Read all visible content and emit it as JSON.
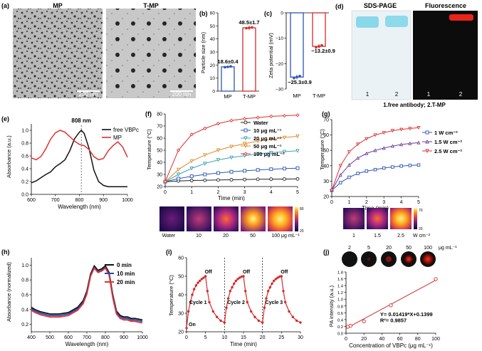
{
  "panels": {
    "a": {
      "letter": "(a)",
      "mp_title": "MP",
      "tmp_title": "T-MP",
      "scale_left": "200 nm",
      "scale_right": "200 nm"
    },
    "b": {
      "letter": "(b)",
      "ylabel": "Particle size (nm)",
      "categories": [
        "MP",
        "T-MP"
      ],
      "values": [
        18.6,
        48.5
      ],
      "labels": [
        "18.6±0.4",
        "48.5±1.7"
      ],
      "yticks": [
        "0",
        "10",
        "20",
        "30",
        "40",
        "50",
        "60"
      ],
      "ylim": [
        0,
        60
      ],
      "colors": [
        "#2b55b5",
        "#d42a2a"
      ]
    },
    "c": {
      "letter": "(c)",
      "ylabel": "Zeta potential (mV)",
      "categories": [
        "MP",
        "T-MP"
      ],
      "values": [
        -25.3,
        -13.2
      ],
      "labels": [
        "−25.3±0.9",
        "−13.2±0.9"
      ],
      "yticks": [
        "0",
        "−10",
        "−20",
        "−30"
      ],
      "ylim": [
        -30,
        0
      ],
      "colors": [
        "#2b55b5",
        "#d42a2a"
      ]
    },
    "d": {
      "letter": "(d)",
      "title_left": "SDS-PAGE",
      "title_right": "Fluorescence",
      "lane_left": [
        "1",
        "2"
      ],
      "lane_right": [
        "1",
        "2"
      ],
      "caption": "1.free antibody; 2.T-MP"
    },
    "e": {
      "letter": "(e)",
      "xlabel": "Wavelength (nm)",
      "ylabel": "Absorbance (a.u.)",
      "peak_label": "808 nm",
      "xticks": [
        "600",
        "700",
        "800",
        "900",
        "1000"
      ],
      "yticks": [
        "0.0",
        "0.2",
        "0.4",
        "0.6",
        "0.8",
        "1.0"
      ],
      "legend": [
        "free VBPc",
        "MP"
      ]
    },
    "f": {
      "letter": "(f)",
      "xlabel": "Time (min)",
      "ylabel": "Temperature (°C)",
      "xticks": [
        "0",
        "1",
        "2",
        "3",
        "4",
        "5"
      ],
      "yticks": [
        "20",
        "30",
        "40",
        "50",
        "60",
        "70",
        "80"
      ],
      "legend": [
        "Water",
        "10 μg mL⁻¹",
        "20 μg mL⁻¹",
        "50 μg mL⁻¹",
        "100 μg mL⁻¹"
      ],
      "thermal_labels": [
        "Water",
        "10",
        "20",
        "50",
        "100 μg mL⁻¹"
      ],
      "cbar_max": "80",
      "cbar_min": "20"
    },
    "g": {
      "letter": "(g)",
      "xlabel": "Time (min)",
      "ylabel": "Temperature (°C)",
      "xticks": [
        "0",
        "1",
        "2",
        "3",
        "4",
        "5"
      ],
      "yticks": [
        "20",
        "30",
        "40",
        "50",
        "60",
        "70"
      ],
      "legend": [
        "1 W cm⁻²",
        "1.5 W cm⁻²",
        "2.5 W cm⁻²"
      ],
      "thermal_labels": [
        "1",
        "1.5",
        "2.5",
        "W cm⁻²"
      ],
      "cbar_max": "70",
      "cbar_min": "20"
    },
    "h": {
      "letter": "(h)",
      "xlabel": "Wavelength (nm)",
      "ylabel": "Absorbance (normalized)",
      "xticks": [
        "400",
        "500",
        "600",
        "700",
        "800",
        "900",
        "1000"
      ],
      "yticks": [
        "0.2",
        "0.4",
        "0.6",
        "0.8",
        "1.0"
      ],
      "legend": [
        "0 min",
        "10 min",
        "20 min"
      ]
    },
    "i": {
      "letter": "(i)",
      "xlabel": "Time (min)",
      "ylabel": "Temperature (°C)",
      "xticks": [
        "0",
        "5",
        "10",
        "15",
        "20",
        "25",
        "30"
      ],
      "yticks": [
        "20",
        "30",
        "40",
        "50",
        "60"
      ],
      "cycles": [
        "Cycle 1",
        "Cycle 2",
        "Cycle 3"
      ],
      "on_label": "On",
      "off_label": "Off"
    },
    "j": {
      "letter": "(j)",
      "xlabel": "Concentration of VBPc (μg mL⁻¹)",
      "ylabel": "PA intensity (a.u.)",
      "xticks": [
        "0",
        "20",
        "40",
        "60",
        "80",
        "100"
      ],
      "yticks": [
        "0.0",
        "0.2",
        "0.4",
        "0.6",
        "0.8",
        "1.0",
        "1.2",
        "1.4",
        "1.6",
        "1.8"
      ],
      "equation": "Y= 0.01419*X+0.1399",
      "r2": "R²= 0.9857",
      "conc_labels": [
        "2",
        "5",
        "20",
        "50",
        "100",
        "μg mL⁻¹"
      ]
    }
  },
  "chart_data": [
    {
      "panel": "b",
      "type": "bar",
      "categories": [
        "MP",
        "T-MP"
      ],
      "values": [
        18.6,
        48.5
      ],
      "errors": [
        0.4,
        1.7
      ],
      "ylabel": "Particle size (nm)",
      "ylim": [
        0,
        60
      ]
    },
    {
      "panel": "c",
      "type": "bar",
      "categories": [
        "MP",
        "T-MP"
      ],
      "values": [
        -25.3,
        -13.2
      ],
      "errors": [
        0.9,
        0.9
      ],
      "ylabel": "Zeta potential (mV)",
      "ylim": [
        -30,
        0
      ]
    },
    {
      "panel": "e",
      "type": "line",
      "xlabel": "Wavelength (nm)",
      "ylabel": "Absorbance (a.u.)",
      "xlim": [
        600,
        1000
      ],
      "ylim": [
        0,
        1.1
      ],
      "series": [
        {
          "name": "free VBPc",
          "color": "#111111",
          "x": [
            600,
            620,
            640,
            660,
            680,
            700,
            720,
            740,
            760,
            780,
            800,
            808,
            820,
            840,
            860,
            880,
            900,
            920,
            940,
            960,
            980,
            1000
          ],
          "y": [
            0.18,
            0.21,
            0.26,
            0.31,
            0.35,
            0.43,
            0.48,
            0.54,
            0.68,
            0.87,
            0.97,
            1.0,
            0.95,
            0.72,
            0.38,
            0.2,
            0.14,
            0.12,
            0.12,
            0.12,
            0.12,
            0.12
          ]
        },
        {
          "name": "MP",
          "color": "#e03030",
          "x": [
            600,
            620,
            640,
            660,
            680,
            700,
            720,
            740,
            760,
            780,
            800,
            820,
            840,
            860,
            880,
            900,
            920,
            940,
            960,
            980,
            1000
          ],
          "y": [
            0.57,
            0.54,
            0.59,
            0.71,
            0.86,
            0.96,
            1.0,
            0.97,
            0.9,
            0.83,
            0.78,
            0.76,
            0.7,
            0.59,
            0.54,
            0.56,
            0.68,
            0.76,
            0.82,
            0.74,
            0.58
          ]
        }
      ]
    },
    {
      "panel": "f",
      "type": "line",
      "xlabel": "Time (min)",
      "ylabel": "Temperature (°C)",
      "xlim": [
        0,
        5
      ],
      "ylim": [
        20,
        80
      ],
      "x": [
        0,
        0.5,
        1,
        1.5,
        2,
        2.5,
        3,
        3.5,
        4,
        4.5,
        5
      ],
      "series": [
        {
          "name": "Water",
          "color": "#222222",
          "marker": "circle",
          "y": [
            24,
            24.6,
            25,
            25.2,
            25.4,
            25.6,
            25.8,
            26,
            26.1,
            26.2,
            26.3
          ]
        },
        {
          "name": "10 μg mL⁻¹",
          "color": "#2b55b5",
          "marker": "square",
          "y": [
            24,
            26.5,
            28.5,
            30,
            31.2,
            32.2,
            33,
            33.7,
            34.3,
            34.8,
            35.2
          ]
        },
        {
          "name": "20 μg mL⁻¹",
          "color": "#3ba3b8",
          "marker": "triangle-down",
          "y": [
            24,
            30,
            35,
            39,
            42,
            44,
            45.5,
            47,
            48,
            48.8,
            49.5
          ]
        },
        {
          "name": "50 μg mL⁻¹",
          "color": "#e08a2a",
          "marker": "triangle-down",
          "y": [
            24,
            34,
            41,
            46,
            50,
            53,
            55.5,
            57.5,
            59,
            60.5,
            61.5
          ]
        },
        {
          "name": "100 μg mL⁻¹",
          "color": "#e03030",
          "marker": "diamond",
          "y": [
            24,
            50,
            63,
            68,
            72,
            74.5,
            76,
            77,
            78,
            78.5,
            79
          ]
        }
      ]
    },
    {
      "panel": "g",
      "type": "line",
      "xlabel": "Time (min)",
      "ylabel": "Temperature (°C)",
      "xlim": [
        0,
        5
      ],
      "ylim": [
        20,
        70
      ],
      "x": [
        0,
        0.5,
        1,
        1.5,
        2,
        2.5,
        3,
        3.5,
        4,
        4.5,
        5
      ],
      "series": [
        {
          "name": "1 W cm⁻²",
          "color": "#2b55b5",
          "marker": "square",
          "y": [
            24,
            29,
            32.5,
            35,
            36.5,
            37.5,
            38.5,
            39.2,
            39.8,
            40.2,
            40.5
          ]
        },
        {
          "name": "1.5 W cm⁻²",
          "color": "#6a3b9a",
          "marker": "triangle",
          "y": [
            24,
            34,
            40.5,
            45,
            48,
            50,
            51.5,
            52.8,
            53.8,
            54.5,
            55
          ]
        },
        {
          "name": "2.5 W cm⁻²",
          "color": "#e03030",
          "marker": "triangle-down",
          "y": [
            24,
            40,
            49,
            54,
            57.5,
            60,
            61.5,
            62.8,
            63.6,
            64.2,
            64.8
          ]
        }
      ]
    },
    {
      "panel": "h",
      "type": "line",
      "xlabel": "Wavelength (nm)",
      "ylabel": "Absorbance (normalized)",
      "xlim": [
        400,
        1000
      ],
      "ylim": [
        0.1,
        1.1
      ],
      "series": [
        {
          "name": "0 min",
          "color": "#111111",
          "x": [
            400,
            420,
            450,
            500,
            550,
            600,
            650,
            680,
            700,
            720,
            740,
            760,
            780,
            800,
            820,
            840,
            860,
            880,
            900,
            920,
            940,
            960,
            980,
            1000
          ],
          "y": [
            0.43,
            0.4,
            0.37,
            0.34,
            0.34,
            0.36,
            0.43,
            0.52,
            0.65,
            0.88,
            0.99,
            0.93,
            0.95,
            0.99,
            0.9,
            0.6,
            0.38,
            0.32,
            0.3,
            0.3,
            0.28,
            0.28,
            0.27,
            0.26
          ]
        },
        {
          "name": "10 min",
          "color": "#1e4db0",
          "x": [
            400,
            420,
            450,
            500,
            550,
            600,
            650,
            680,
            700,
            720,
            740,
            760,
            780,
            800,
            820,
            840,
            860,
            880,
            900,
            920,
            940,
            960,
            980,
            1000
          ],
          "y": [
            0.41,
            0.38,
            0.35,
            0.32,
            0.32,
            0.34,
            0.41,
            0.5,
            0.63,
            0.86,
            0.97,
            0.91,
            0.93,
            0.97,
            0.88,
            0.58,
            0.36,
            0.3,
            0.28,
            0.28,
            0.26,
            0.26,
            0.25,
            0.24
          ]
        },
        {
          "name": "20 min",
          "color": "#e03030",
          "x": [
            400,
            420,
            450,
            500,
            550,
            600,
            650,
            680,
            700,
            720,
            740,
            760,
            780,
            800,
            820,
            840,
            860,
            880,
            900,
            920,
            940,
            960,
            980,
            1000
          ],
          "y": [
            0.39,
            0.36,
            0.33,
            0.3,
            0.3,
            0.32,
            0.39,
            0.48,
            0.61,
            0.85,
            0.96,
            0.9,
            0.92,
            0.96,
            0.87,
            0.56,
            0.34,
            0.28,
            0.26,
            0.26,
            0.24,
            0.24,
            0.23,
            0.22
          ]
        }
      ]
    },
    {
      "panel": "i",
      "type": "line",
      "xlabel": "Time (min)",
      "ylabel": "Temperature (°C)",
      "xlim": [
        0,
        30
      ],
      "ylim": [
        20,
        60
      ],
      "series": [
        {
          "name": "Photothermal cycles",
          "color": "#d42a2a",
          "x": [
            0,
            0.5,
            1,
            1.5,
            2,
            2.5,
            3,
            3.5,
            4,
            4.5,
            5,
            5.5,
            6,
            7,
            8,
            9,
            10,
            10.5,
            11,
            11.5,
            12,
            12.5,
            13,
            13.5,
            14,
            14.5,
            15,
            15.5,
            16,
            17,
            18,
            19,
            20,
            20.5,
            21,
            21.5,
            22,
            22.5,
            23,
            23.5,
            24,
            24.5,
            25,
            25.5,
            26,
            27,
            28,
            29,
            30
          ],
          "y": [
            22,
            31,
            36,
            40,
            43,
            45,
            46.5,
            47.5,
            48.5,
            49.2,
            50,
            42,
            36,
            31,
            28,
            26,
            25,
            33,
            38,
            42,
            44,
            46,
            47.5,
            48.5,
            49.2,
            49.8,
            50,
            42,
            36,
            31,
            28,
            26,
            25,
            33,
            38,
            42,
            44,
            46,
            47.5,
            48.5,
            49.2,
            49.8,
            50,
            42,
            36,
            31,
            28,
            26,
            25
          ]
        }
      ]
    },
    {
      "panel": "j",
      "type": "scatter",
      "xlabel": "Concentration of VBPc (μg mL⁻¹)",
      "ylabel": "PA intensity (a.u.)",
      "xlim": [
        0,
        100
      ],
      "ylim": [
        0,
        1.8
      ],
      "x": [
        2,
        5,
        20,
        50,
        100
      ],
      "y": [
        0.19,
        0.22,
        0.35,
        0.82,
        1.59
      ],
      "fit": {
        "slope": 0.01419,
        "intercept": 0.1399,
        "r2": 0.9857
      }
    }
  ]
}
